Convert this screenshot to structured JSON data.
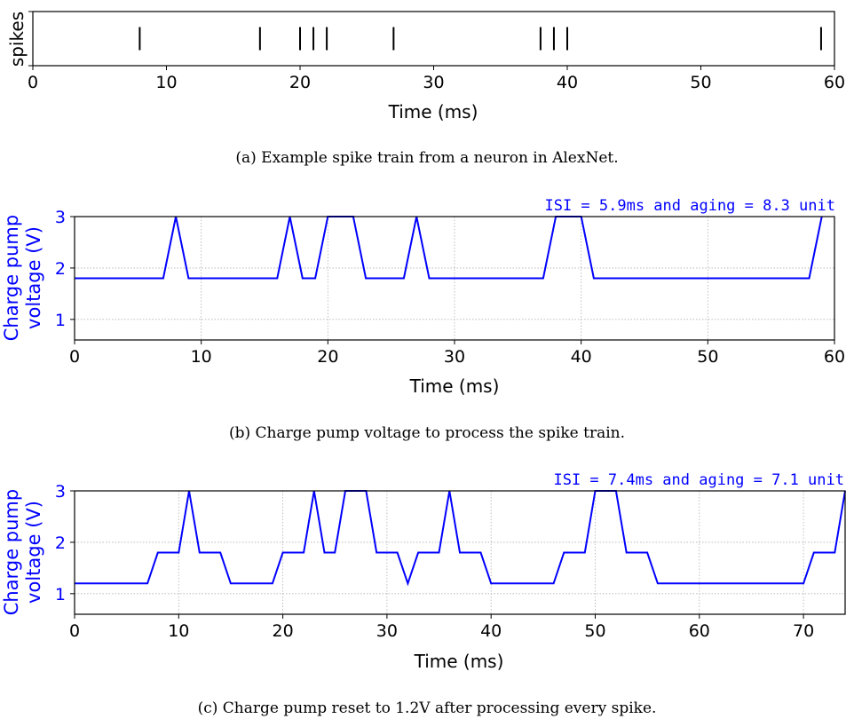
{
  "colors": {
    "trace": "#0000ff",
    "axis": "#000000",
    "grid": "#b0b0b0"
  },
  "chart_data": [
    {
      "type": "raster",
      "title": "",
      "xlabel": "Time (ms)",
      "ylabel": "spikes",
      "xlim": [
        0,
        60
      ],
      "xticks": [
        0,
        10,
        20,
        30,
        40,
        50,
        60
      ],
      "grid": false,
      "spike_times": [
        8,
        17,
        20,
        21,
        22,
        27,
        38,
        39,
        40,
        59
      ],
      "caption": "(a) Example spike train from a neuron in AlexNet."
    },
    {
      "type": "line",
      "xlabel": "Time (ms)",
      "ylabel_lines": [
        "Charge pump",
        "voltage (V)"
      ],
      "xlim": [
        0,
        60
      ],
      "ylim": [
        0.6,
        3.0
      ],
      "xticks": [
        0,
        10,
        20,
        30,
        40,
        50,
        60
      ],
      "yticks": [
        1,
        2,
        3
      ],
      "grid": true,
      "annotation": "ISI = 5.9ms and aging = 8.3 unit",
      "series": [
        {
          "x": [
            0,
            7,
            8,
            9,
            16,
            17,
            18,
            19,
            20,
            22,
            23,
            26,
            27,
            28,
            37,
            38,
            40,
            41,
            58,
            59
          ],
          "y": [
            1.8,
            1.8,
            3.0,
            1.8,
            1.8,
            3.0,
            1.8,
            1.8,
            3.0,
            3.0,
            1.8,
            1.8,
            3.0,
            1.8,
            1.8,
            3.0,
            3.0,
            1.8,
            1.8,
            3.0
          ]
        }
      ],
      "caption": "(b) Charge pump voltage to process the spike train."
    },
    {
      "type": "line",
      "xlabel": "Time (ms)",
      "ylabel_lines": [
        "Charge pump",
        "voltage (V)"
      ],
      "xlim": [
        0,
        74
      ],
      "ylim": [
        0.6,
        3.0
      ],
      "xticks": [
        0,
        10,
        20,
        30,
        40,
        50,
        60,
        70
      ],
      "yticks": [
        1,
        2,
        3
      ],
      "grid": true,
      "annotation": "ISI = 7.4ms and aging = 7.1 unit",
      "series": [
        {
          "x": [
            0,
            7,
            8,
            10,
            11,
            12,
            14,
            15,
            19,
            20,
            22,
            23,
            24,
            25,
            26,
            28,
            29,
            31,
            32,
            33,
            35,
            36,
            37,
            39,
            40,
            46,
            47,
            49,
            50,
            52,
            53,
            55,
            56,
            70,
            71,
            73,
            74
          ],
          "y": [
            1.2,
            1.2,
            1.8,
            1.8,
            3.0,
            1.8,
            1.8,
            1.2,
            1.2,
            1.8,
            1.8,
            3.0,
            1.8,
            1.8,
            3.0,
            3.0,
            1.8,
            1.8,
            1.2,
            1.8,
            1.8,
            3.0,
            1.8,
            1.8,
            1.2,
            1.2,
            1.8,
            1.8,
            3.0,
            3.0,
            1.8,
            1.8,
            1.2,
            1.2,
            1.8,
            1.8,
            3.0
          ]
        }
      ],
      "caption": "(c) Charge pump reset to 1.2V after processing every spike."
    }
  ]
}
